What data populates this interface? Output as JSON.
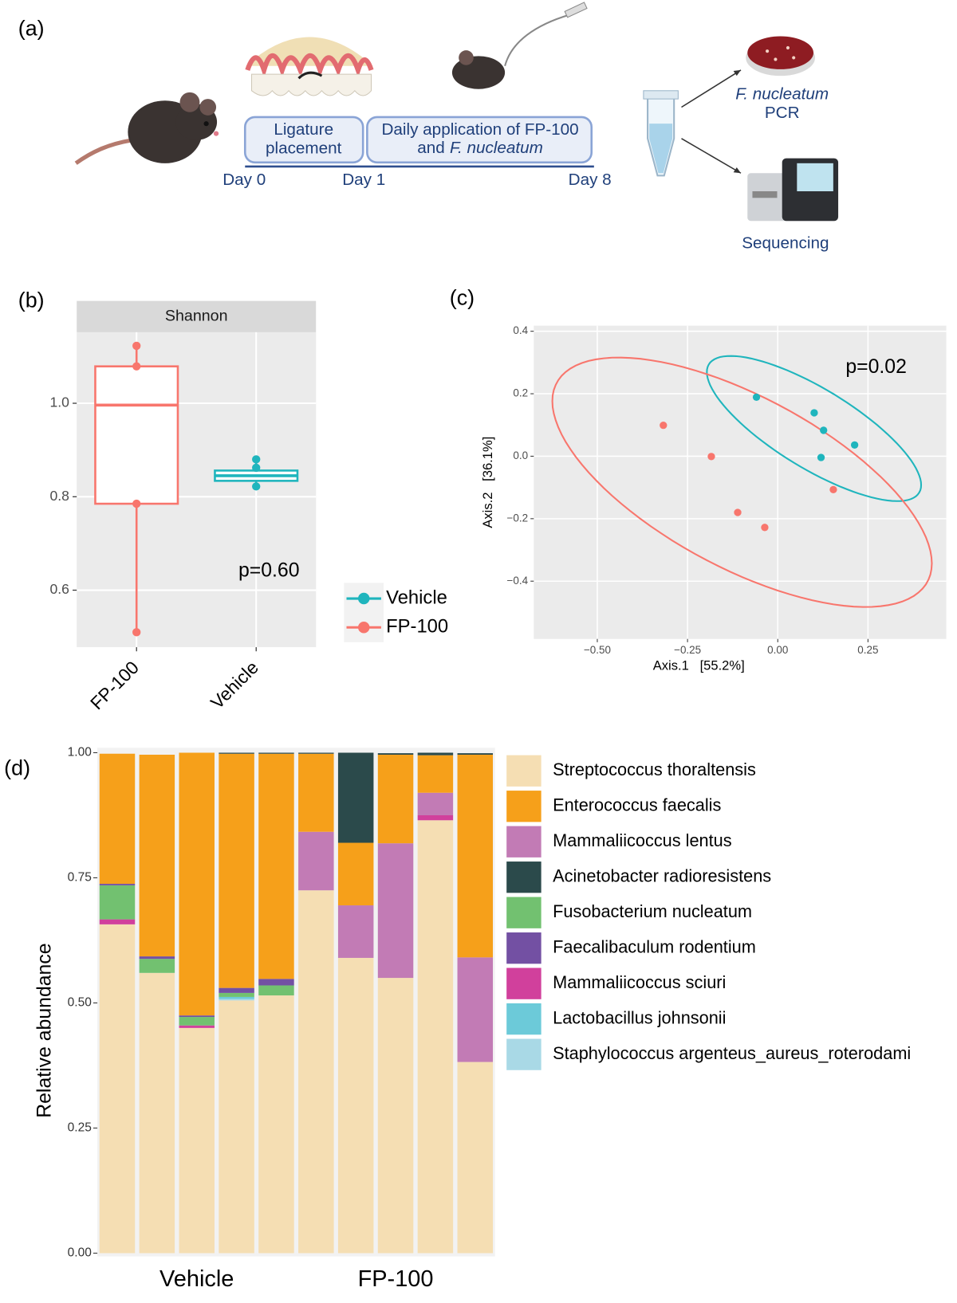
{
  "diagram": {
    "label": "(a)",
    "steps": [
      {
        "lines": [
          "Ligature",
          "placement"
        ]
      },
      {
        "lines": [
          "Daily application of FP-100"
        ],
        "line2_prefix": "and",
        "line2_italic": "F. nucleatum"
      }
    ],
    "days": [
      "Day 0",
      "Day 1",
      "Day 8"
    ],
    "outcomes": {
      "pcr_species": "F. nucleatum",
      "pcr": "PCR",
      "sequencing": "Sequencing"
    }
  },
  "chart_data": [
    {
      "type": "box",
      "label": "(b)",
      "strip": "Shannon",
      "ylim": [
        0.478,
        1.152
      ],
      "yticks": [
        0.6,
        0.8,
        {
          "value": 1,
          "label": "1.0"
        }
      ],
      "grid": true,
      "annotation": "p=0.60",
      "legend": "right",
      "boxes": [
        {
          "name": "FP-100",
          "color": "#f8766d",
          "min": 0.51,
          "q1": 0.785,
          "median": 0.996,
          "q3": 1.079,
          "max": 1.123,
          "points": [
            1.123,
            1.079,
            0.785,
            0.51
          ]
        },
        {
          "name": "Vehicle",
          "color": "#1fb5bd",
          "min": 0.822,
          "q1": 0.834,
          "median": 0.845,
          "q3": 0.856,
          "max": 0.88,
          "points": [
            0.88,
            0.862,
            0.822
          ]
        }
      ]
    },
    {
      "type": "scatter",
      "label": "(c)",
      "x_label": "Axis.1   [55.2%]",
      "y_label": "Axis.2   [36.1%]",
      "annotation": "p=0.02",
      "grid": true,
      "xlim": [
        -0.676,
        0.467
      ],
      "ylim": [
        -0.585,
        0.418
      ],
      "xticks": [
        {
          "value": -0.5,
          "label": "−0.50"
        },
        {
          "value": -0.25,
          "label": "−0.25"
        },
        {
          "value": 0,
          "label": "0.00"
        },
        0.25
      ],
      "yticks": [
        {
          "value": -0.4,
          "label": "−0.4"
        },
        {
          "value": -0.2,
          "label": "−0.2"
        },
        {
          "value": 0,
          "label": "0.0"
        },
        0.2,
        0.4
      ],
      "series": [
        {
          "name": "Vehicle",
          "color": "#1fb5bd",
          "x": [
            -0.059,
            0.101,
            0.127,
            0.12,
            0.213
          ],
          "values": [
            0.189,
            0.139,
            0.083,
            -0.004,
            0.036
          ]
        },
        {
          "name": "FP-100",
          "color": "#f8766d",
          "x": [
            -0.317,
            -0.184,
            -0.111,
            -0.036,
            0.154
          ],
          "values": [
            0.099,
            -0.001,
            -0.18,
            -0.228,
            -0.107
          ]
        }
      ]
    },
    {
      "type": "stacked_bar",
      "label": "(d)",
      "y_label": "Relative abundance",
      "ylim": [
        0,
        1
      ],
      "legend": "right",
      "yticks": [
        {
          "value": 0,
          "label": "0.00"
        },
        {
          "value": 0.25,
          "label": "0.25"
        },
        {
          "value": 0.5,
          "label": "0.50"
        },
        {
          "value": 0.75,
          "label": "0.75"
        },
        {
          "value": 1,
          "label": "1.00"
        }
      ],
      "categories": [
        null,
        null,
        null,
        null,
        null,
        null,
        null,
        null,
        null,
        null
      ],
      "groups": [
        {
          "name": "Vehicle",
          "size": 5
        },
        {
          "name": "FP-100",
          "size": 5
        }
      ],
      "series": [
        {
          "name": "Streptococcus thoraltensis",
          "color": "#f5deb3",
          "values": [
            0.657,
            0.56,
            0.45,
            0.505,
            0.515,
            0.725,
            0.59,
            0.55,
            0.865,
            0.382
          ]
        },
        {
          "name": "Enterococcus faecalis",
          "color": "#f6a01a",
          "values": [
            0.26,
            0.403,
            0.525,
            0.468,
            0.45,
            0.156,
            0.125,
            0.177,
            0.075,
            0.405
          ]
        },
        {
          "name": "Mammaliicoccus lentus",
          "color": "#c27bb5",
          "values": [
            0,
            0,
            0,
            0,
            0,
            0.117,
            0.105,
            0.269,
            0.045,
            0.209
          ]
        },
        {
          "name": "Acinetobacter radioresistens",
          "color": "#2b4a4b",
          "values": [
            0,
            0,
            0,
            0.002,
            0.002,
            0.002,
            0.18,
            0.003,
            0.005,
            0.003
          ]
        },
        {
          "name": "Fusobacterium nucleatum",
          "color": "#72c170",
          "values": [
            0.068,
            0.028,
            0.017,
            0.008,
            0.02,
            0,
            0,
            0,
            0,
            0
          ]
        },
        {
          "name": "Faecalibaculum rodentium",
          "color": "#7350a3",
          "values": [
            0.003,
            0.005,
            0.003,
            0.01,
            0.013,
            0,
            0,
            0,
            0,
            0
          ]
        },
        {
          "name": "Mammaliicoccus sciuri",
          "color": "#d1409c",
          "values": [
            0.01,
            0,
            0.005,
            0,
            0,
            0,
            0,
            0,
            0.01,
            0
          ]
        },
        {
          "name": "Lactobacillus johnsonii",
          "color": "#6ccad9",
          "values": [
            0,
            0,
            0,
            0.004,
            0,
            0,
            0,
            0,
            0,
            0
          ]
        },
        {
          "name": "Staphylococcus argenteus_aureus_roterodami",
          "color": "#a9d9e6",
          "values": [
            0,
            0,
            0,
            0.003,
            0,
            0,
            0,
            0,
            0,
            0
          ]
        }
      ]
    }
  ]
}
